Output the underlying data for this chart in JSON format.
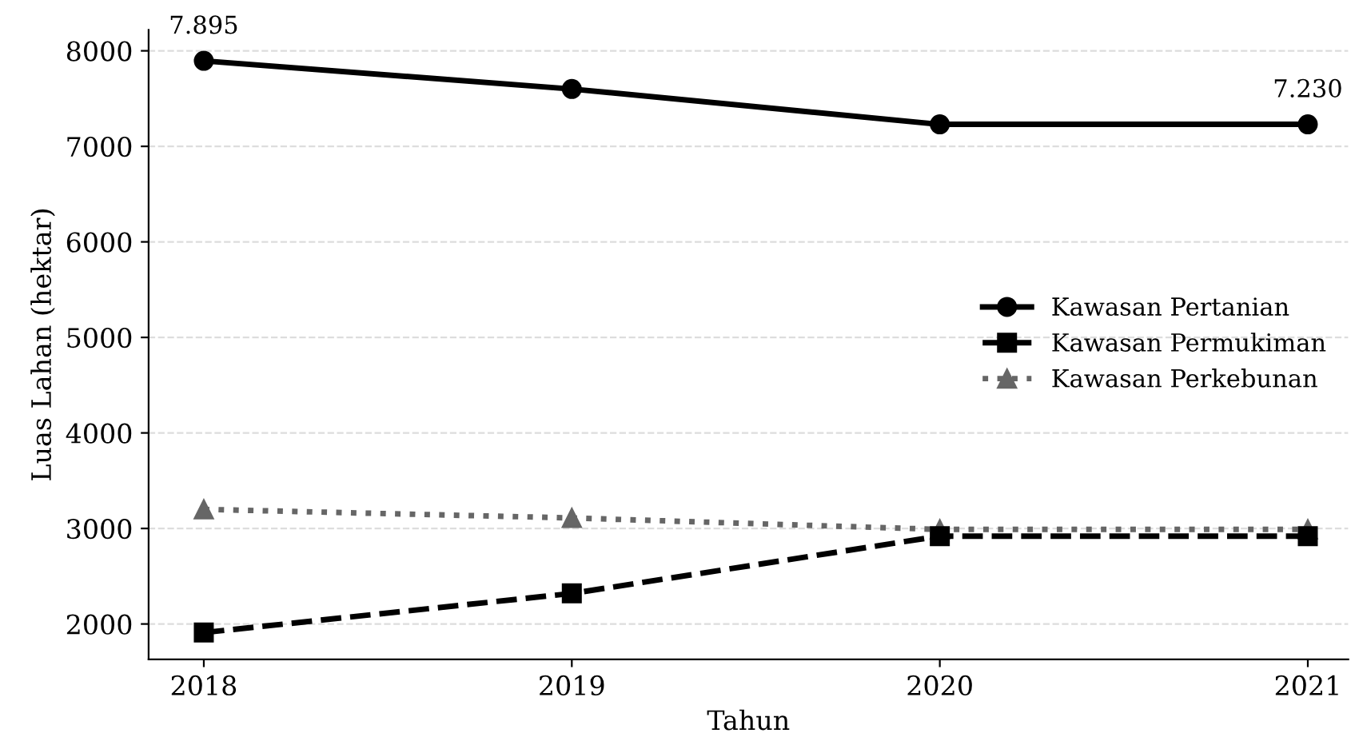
{
  "chart_data": {
    "type": "line",
    "xlabel": "Tahun",
    "ylabel": "Luas Lahan (hektar)",
    "x": [
      2018,
      2019,
      2020,
      2021
    ],
    "series": [
      {
        "name": "Kawasan Pertanian",
        "color": "#000000",
        "marker": "circle",
        "line_style": "solid",
        "values": [
          7895,
          7600,
          7230,
          7230
        ]
      },
      {
        "name": "Kawasan Permukiman",
        "color": "#000000",
        "marker": "square",
        "line_style": "dashed",
        "values": [
          1910,
          2320,
          2920,
          2920
        ]
      },
      {
        "name": "Kawasan Perkebunan",
        "color": "#666666",
        "marker": "triangle",
        "line_style": "dotted",
        "values": [
          3200,
          3110,
          2990,
          2990
        ]
      }
    ],
    "annotations": [
      {
        "text": "7.895",
        "x": 2018,
        "y": 7895
      },
      {
        "text": "7.230",
        "x": 2021,
        "y": 7230
      }
    ],
    "xlim": [
      2017.85,
      2021.11
    ],
    "xticks": [
      2018,
      2019,
      2020,
      2021
    ],
    "ylim": [
      1630,
      8220
    ],
    "yticks": [
      2000,
      3000,
      4000,
      5000,
      6000,
      7000,
      8000
    ],
    "grid": "y",
    "legend": "right"
  }
}
